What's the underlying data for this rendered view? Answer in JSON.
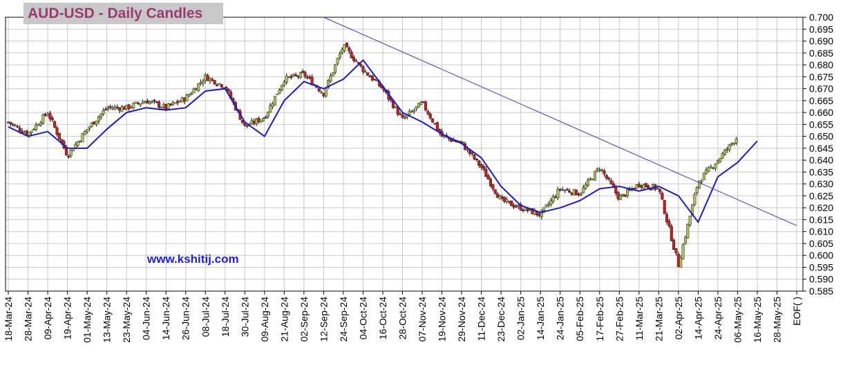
{
  "chart_data": {
    "type": "candlestick",
    "title": "AUD-USD - Daily Candles",
    "watermark": "www.kshitij.com",
    "ylim": [
      0.585,
      0.7
    ],
    "y_ticks": [
      "0.700",
      "0.695",
      "0.690",
      "0.685",
      "0.680",
      "0.675",
      "0.670",
      "0.665",
      "0.660",
      "0.655",
      "0.650",
      "0.645",
      "0.640",
      "0.635",
      "0.630",
      "0.625",
      "0.620",
      "0.615",
      "0.610",
      "0.605",
      "0.600",
      "0.595",
      "0.590",
      "0.585"
    ],
    "x_ticks": [
      "18-Mar-24",
      "28-Mar-24",
      "09-Apr-24",
      "19-Apr-24",
      "01-May-24",
      "13-May-24",
      "23-May-24",
      "04-Jun-24",
      "14-Jun-24",
      "26-Jun-24",
      "08-Jul-24",
      "18-Jul-24",
      "30-Jul-24",
      "09-Aug-24",
      "21-Aug-24",
      "02-Sep-24",
      "12-Sep-24",
      "24-Sep-24",
      "04-Oct-24",
      "16-Oct-24",
      "28-Oct-24",
      "07-Nov-24",
      "19-Nov-24",
      "29-Nov-24",
      "11-Dec-24",
      "23-Dec-24",
      "02-Jan-25",
      "14-Jan-25",
      "24-Jan-25",
      "05-Feb-25",
      "17-Feb-25",
      "27-Feb-25",
      "11-Mar-25",
      "21-Mar-25",
      "02-Apr-25",
      "14-Apr-25",
      "24-Apr-25",
      "06-May-25",
      "16-May-25",
      "28-May-25",
      "EOF( )"
    ],
    "close_path": [
      [
        "18-Mar-24",
        0.656
      ],
      [
        "28-Mar-24",
        0.651
      ],
      [
        "09-Apr-24",
        0.66
      ],
      [
        "19-Apr-24",
        0.642
      ],
      [
        "01-May-24",
        0.653
      ],
      [
        "13-May-24",
        0.662
      ],
      [
        "23-May-24",
        0.662
      ],
      [
        "04-Jun-24",
        0.665
      ],
      [
        "14-Jun-24",
        0.662
      ],
      [
        "26-Jun-24",
        0.666
      ],
      [
        "08-Jul-24",
        0.675
      ],
      [
        "18-Jul-24",
        0.671
      ],
      [
        "30-Jul-24",
        0.654
      ],
      [
        "09-Aug-24",
        0.658
      ],
      [
        "21-Aug-24",
        0.674
      ],
      [
        "02-Sep-24",
        0.676
      ],
      [
        "12-Sep-24",
        0.668
      ],
      [
        "24-Sep-24",
        0.688
      ],
      [
        "04-Oct-24",
        0.678
      ],
      [
        "16-Oct-24",
        0.67
      ],
      [
        "28-Oct-24",
        0.657
      ],
      [
        "07-Nov-24",
        0.664
      ],
      [
        "19-Nov-24",
        0.65
      ],
      [
        "29-Nov-24",
        0.647
      ],
      [
        "11-Dec-24",
        0.637
      ],
      [
        "23-Dec-24",
        0.623
      ],
      [
        "02-Jan-25",
        0.62
      ],
      [
        "14-Jan-25",
        0.617
      ],
      [
        "24-Jan-25",
        0.628
      ],
      [
        "05-Feb-25",
        0.626
      ],
      [
        "17-Feb-25",
        0.637
      ],
      [
        "27-Feb-25",
        0.624
      ],
      [
        "11-Mar-25",
        0.63
      ],
      [
        "21-Mar-25",
        0.628
      ],
      [
        "02-Apr-25",
        0.596
      ],
      [
        "14-Apr-25",
        0.631
      ],
      [
        "24-Apr-25",
        0.64
      ],
      [
        "06-May-25",
        0.65
      ]
    ],
    "moving_average": [
      [
        "18-Mar-24",
        0.654
      ],
      [
        "28-Mar-24",
        0.65
      ],
      [
        "09-Apr-24",
        0.652
      ],
      [
        "19-Apr-24",
        0.645
      ],
      [
        "01-May-24",
        0.645
      ],
      [
        "13-May-24",
        0.653
      ],
      [
        "23-May-24",
        0.66
      ],
      [
        "04-Jun-24",
        0.662
      ],
      [
        "14-Jun-24",
        0.661
      ],
      [
        "26-Jun-24",
        0.662
      ],
      [
        "08-Jul-24",
        0.669
      ],
      [
        "18-Jul-24",
        0.67
      ],
      [
        "30-Jul-24",
        0.656
      ],
      [
        "09-Aug-24",
        0.65
      ],
      [
        "21-Aug-24",
        0.665
      ],
      [
        "02-Sep-24",
        0.673
      ],
      [
        "12-Sep-24",
        0.67
      ],
      [
        "24-Sep-24",
        0.674
      ],
      [
        "04-Oct-24",
        0.682
      ],
      [
        "16-Oct-24",
        0.671
      ],
      [
        "28-Oct-24",
        0.66
      ],
      [
        "07-Nov-24",
        0.656
      ],
      [
        "19-Nov-24",
        0.651
      ],
      [
        "29-Nov-24",
        0.647
      ],
      [
        "11-Dec-24",
        0.641
      ],
      [
        "23-Dec-24",
        0.629
      ],
      [
        "02-Jan-25",
        0.621
      ],
      [
        "14-Jan-25",
        0.618
      ],
      [
        "24-Jan-25",
        0.62
      ],
      [
        "05-Feb-25",
        0.623
      ],
      [
        "17-Feb-25",
        0.628
      ],
      [
        "27-Feb-25",
        0.629
      ],
      [
        "11-Mar-25",
        0.627
      ],
      [
        "21-Mar-25",
        0.629
      ],
      [
        "02-Apr-25",
        0.625
      ],
      [
        "14-Apr-25",
        0.614
      ],
      [
        "24-Apr-25",
        0.633
      ],
      [
        "06-May-25",
        0.639
      ],
      [
        "16-May-25",
        0.648
      ]
    ],
    "trendline": [
      [
        "12-Sep-24",
        0.7
      ],
      [
        "EOF( )",
        0.6125
      ]
    ],
    "colors": {
      "up": "#a8c05a",
      "down": "#c42020",
      "ma": "#1a1acc",
      "trendline": "#3a3ac8",
      "title": "#9a3b70",
      "watermark": "#1a1aff"
    },
    "grid": true,
    "y_axis_side": "right"
  }
}
